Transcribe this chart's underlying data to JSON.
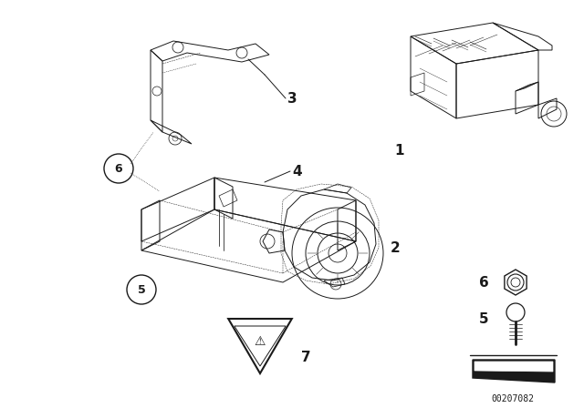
{
  "bg_color": "#ffffff",
  "line_color": "#1a1a1a",
  "fig_width": 6.4,
  "fig_height": 4.48,
  "dpi": 100,
  "part_number": "00207082",
  "lw": 0.7
}
